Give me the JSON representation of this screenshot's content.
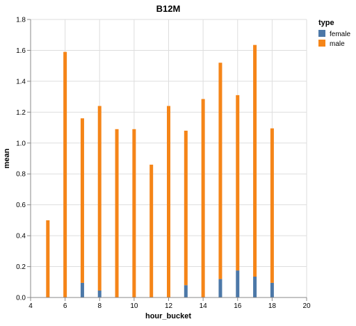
{
  "chart_data": {
    "type": "bar",
    "stacked": true,
    "title": "B12M",
    "xlabel": "hour_bucket",
    "ylabel": "mean",
    "xlim": [
      4,
      20
    ],
    "ylim": [
      0,
      1.8
    ],
    "x_ticks": [
      "4",
      "6",
      "8",
      "10",
      "12",
      "14",
      "16",
      "18",
      "20"
    ],
    "y_ticks": [
      "0.0",
      "0.2",
      "0.4",
      "0.6",
      "0.8",
      "1.0",
      "1.2",
      "1.4",
      "1.6",
      "1.8"
    ],
    "grid": true,
    "legend": {
      "title": "type",
      "placement": "top-right"
    },
    "series": [
      {
        "name": "female",
        "color": "#4c78a8",
        "x": [
          5,
          6,
          7,
          8,
          9,
          10,
          11,
          12,
          13,
          14,
          15,
          16,
          17,
          18
        ],
        "values": [
          0,
          0,
          0.095,
          0.045,
          0,
          0,
          0,
          0,
          0.08,
          0,
          0.12,
          0.175,
          0.135,
          0.095
        ]
      },
      {
        "name": "male",
        "color": "#f58518",
        "x": [
          5,
          6,
          7,
          8,
          9,
          10,
          11,
          12,
          13,
          14,
          15,
          16,
          17,
          18
        ],
        "values": [
          0.5,
          1.59,
          1.065,
          1.195,
          1.09,
          1.09,
          0.86,
          1.24,
          1.0,
          1.285,
          1.4,
          1.135,
          1.5,
          1.0
        ]
      }
    ]
  }
}
